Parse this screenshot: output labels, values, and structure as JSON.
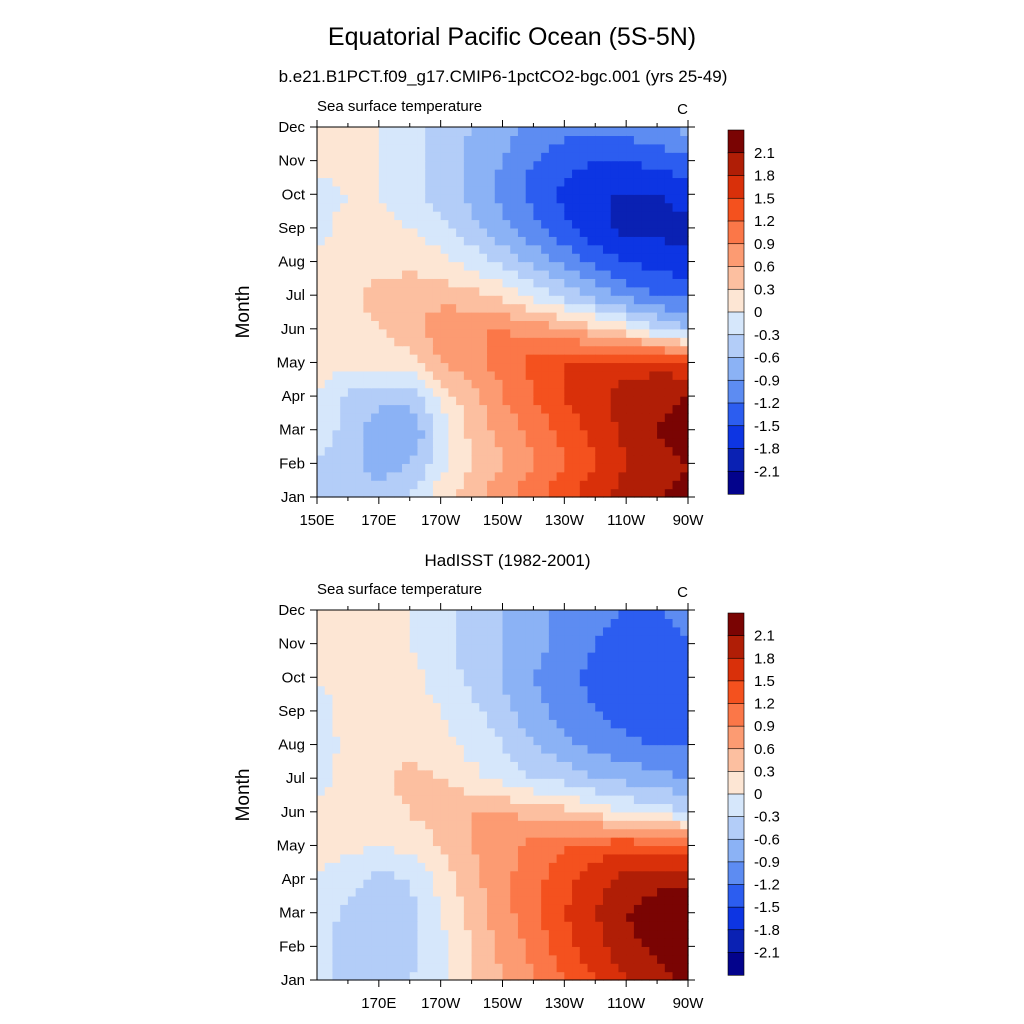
{
  "figure": {
    "title": "Equatorial Pacific Ocean (5S-5N)",
    "subtitle": "b.e21.B1PCT.f09_g17.CMIP6-1pctCO2-bgc.001 (yrs 25-49)"
  },
  "chart_data": [
    {
      "type": "heatmap",
      "panel_title": "",
      "left_string": "Sea surface temperature",
      "right_string": "C",
      "xlabel": "",
      "ylabel": "Month",
      "x_ticks": [
        "150E",
        "170E",
        "170W",
        "150W",
        "130W",
        "110W",
        "90W"
      ],
      "y_ticks": [
        "Jan",
        "Feb",
        "Mar",
        "Apr",
        "May",
        "Jun",
        "Jul",
        "Aug",
        "Sep",
        "Oct",
        "Nov",
        "Dec"
      ],
      "xlim": [
        150,
        270
      ],
      "x_cols": [
        150,
        160,
        170,
        180,
        190,
        200,
        210,
        220,
        230,
        240,
        250,
        260,
        270
      ],
      "z": [
        [
          -0.4,
          -0.5,
          -0.5,
          -0.3,
          0.2,
          0.5,
          0.8,
          1.1,
          1.4,
          1.7,
          1.9,
          2.1,
          2.2
        ],
        [
          -0.3,
          -0.5,
          -0.7,
          -0.6,
          -0.1,
          0.3,
          0.6,
          0.9,
          1.2,
          1.5,
          1.8,
          2.0,
          2.1
        ],
        [
          -0.1,
          -0.4,
          -0.8,
          -0.9,
          -0.2,
          0.4,
          0.7,
          1.0,
          1.3,
          1.6,
          1.9,
          2.1,
          2.3
        ],
        [
          0.0,
          -0.4,
          -0.5,
          -0.5,
          0.1,
          0.5,
          0.9,
          1.2,
          1.5,
          1.7,
          1.9,
          2.0,
          2.1
        ],
        [
          0.1,
          0.1,
          0.1,
          0.2,
          0.6,
          0.8,
          1.0,
          1.3,
          1.5,
          1.6,
          1.7,
          1.7,
          1.6
        ],
        [
          0.2,
          0.2,
          0.3,
          0.5,
          0.8,
          0.9,
          0.9,
          0.8,
          0.6,
          0.4,
          0.1,
          -0.3,
          -0.6
        ],
        [
          0.1,
          0.2,
          0.4,
          0.5,
          0.5,
          0.4,
          0.2,
          -0.1,
          -0.4,
          -0.7,
          -1.0,
          -1.2,
          -1.3
        ],
        [
          0.1,
          0.2,
          0.2,
          0.2,
          0.1,
          -0.1,
          -0.4,
          -0.7,
          -1.0,
          -1.3,
          -1.5,
          -1.6,
          -1.7
        ],
        [
          -0.1,
          0.1,
          0.1,
          0.0,
          -0.2,
          -0.5,
          -0.8,
          -1.1,
          -1.4,
          -1.7,
          -1.9,
          -1.9,
          -1.9
        ],
        [
          -0.1,
          0.0,
          0.0,
          -0.2,
          -0.4,
          -0.7,
          -1.0,
          -1.3,
          -1.6,
          -1.8,
          -1.8,
          -1.8,
          -1.7
        ],
        [
          0.1,
          0.1,
          0.0,
          -0.2,
          -0.4,
          -0.7,
          -0.9,
          -1.2,
          -1.4,
          -1.5,
          -1.5,
          -1.4,
          -1.3
        ],
        [
          0.1,
          0.1,
          0.0,
          -0.2,
          -0.4,
          -0.6,
          -0.8,
          -1.0,
          -1.1,
          -1.1,
          -1.1,
          -0.9,
          -0.8
        ]
      ]
    },
    {
      "type": "heatmap",
      "panel_title": "HadISST (1982-2001)",
      "left_string": "Sea surface temperature",
      "right_string": "C",
      "xlabel": "",
      "ylabel": "Month",
      "x_ticks": [
        "170E",
        "170W",
        "150W",
        "130W",
        "110W",
        "90W"
      ],
      "y_ticks": [
        "Jan",
        "Feb",
        "Mar",
        "Apr",
        "May",
        "Jun",
        "Jul",
        "Aug",
        "Sep",
        "Oct",
        "Nov",
        "Dec"
      ],
      "xlim": [
        150,
        270
      ],
      "x_cols": [
        150,
        160,
        170,
        180,
        190,
        200,
        210,
        220,
        230,
        240,
        250,
        260,
        270
      ],
      "z": [
        [
          -0.2,
          -0.4,
          -0.4,
          -0.3,
          -0.1,
          0.3,
          0.6,
          0.9,
          1.2,
          1.5,
          1.8,
          2.0,
          2.2
        ],
        [
          -0.2,
          -0.4,
          -0.5,
          -0.4,
          -0.1,
          0.3,
          0.7,
          1.0,
          1.4,
          1.7,
          2.0,
          2.2,
          2.3
        ],
        [
          -0.1,
          -0.4,
          -0.5,
          -0.4,
          0.0,
          0.4,
          0.8,
          1.1,
          1.5,
          1.8,
          2.1,
          2.3,
          2.3
        ],
        [
          0.0,
          -0.2,
          -0.4,
          -0.3,
          0.1,
          0.5,
          0.8,
          1.1,
          1.4,
          1.7,
          1.9,
          2.0,
          2.0
        ],
        [
          0.1,
          0.1,
          0.0,
          0.1,
          0.3,
          0.6,
          0.8,
          1.0,
          1.2,
          1.3,
          1.4,
          1.3,
          1.2
        ],
        [
          0.1,
          0.1,
          0.2,
          0.3,
          0.5,
          0.6,
          0.6,
          0.5,
          0.4,
          0.2,
          0.0,
          -0.1,
          -0.3
        ],
        [
          -0.1,
          0.1,
          0.2,
          0.4,
          0.3,
          0.1,
          -0.1,
          -0.3,
          -0.4,
          -0.6,
          -0.7,
          -0.8,
          -0.9
        ],
        [
          -0.2,
          0.1,
          0.2,
          0.2,
          0.1,
          -0.1,
          -0.3,
          -0.6,
          -0.8,
          -1.0,
          -1.1,
          -1.2,
          -1.2
        ],
        [
          -0.1,
          0.1,
          0.3,
          0.1,
          0.0,
          -0.2,
          -0.5,
          -0.8,
          -1.0,
          -1.2,
          -1.4,
          -1.5,
          -1.5
        ],
        [
          0.0,
          0.1,
          0.1,
          0.1,
          -0.1,
          -0.4,
          -0.6,
          -0.9,
          -1.1,
          -1.3,
          -1.4,
          -1.5,
          -1.4
        ],
        [
          0.1,
          0.1,
          0.1,
          0.0,
          -0.2,
          -0.4,
          -0.6,
          -0.8,
          -1.0,
          -1.2,
          -1.3,
          -1.3,
          -1.2
        ],
        [
          0.1,
          0.1,
          0.1,
          0.0,
          -0.2,
          -0.4,
          -0.6,
          -0.8,
          -1.0,
          -1.1,
          -1.2,
          -1.2,
          -1.1
        ]
      ]
    }
  ],
  "colorbar": {
    "labels": [
      "2.1",
      "1.8",
      "1.5",
      "1.2",
      "0.9",
      "0.6",
      "0.3",
      "0",
      "-0.3",
      "-0.6",
      "-0.9",
      "-1.2",
      "-1.5",
      "-1.8",
      "-2.1"
    ],
    "levels": [
      2.1,
      1.8,
      1.5,
      1.2,
      0.9,
      0.6,
      0.3,
      0,
      -0.3,
      -0.6,
      -0.9,
      -1.2,
      -1.5,
      -1.8,
      -2.1
    ],
    "colors": [
      "#7a0403",
      "#b01e06",
      "#d9300a",
      "#f4511e",
      "#fb7748",
      "#fc9b72",
      "#fcbfa0",
      "#fde6d4",
      "#d6e7fb",
      "#b3cdf8",
      "#8bb2f5",
      "#5d8cf2",
      "#2c5df0",
      "#0d35e3",
      "#0a21b3",
      "#03038c"
    ]
  }
}
